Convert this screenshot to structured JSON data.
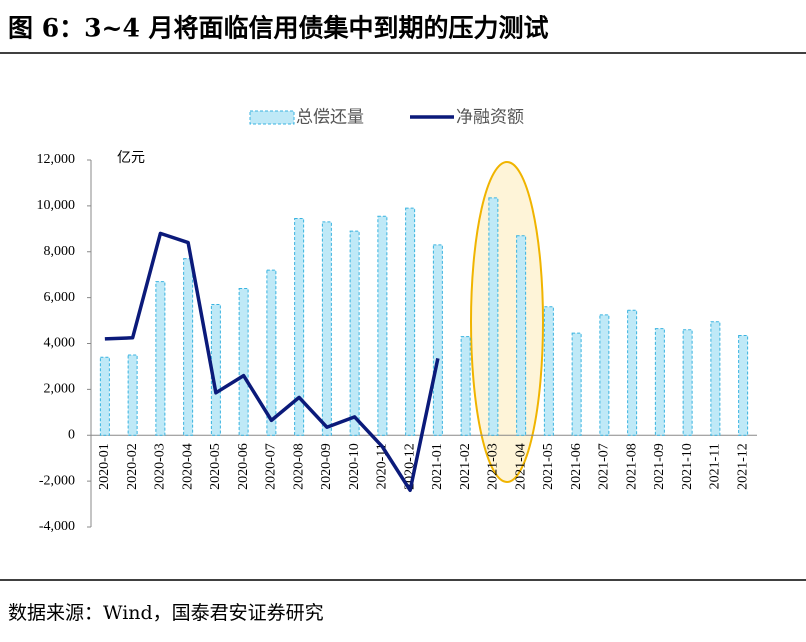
{
  "chart_data": {
    "type": "bar_line",
    "title": "图 6：3~4 月将面临信用债集中到期的压力测试",
    "y_unit": "亿元",
    "source": "数据来源：Wind，国泰君安证券研究",
    "categories": [
      "2020-01",
      "2020-02",
      "2020-03",
      "2020-04",
      "2020-05",
      "2020-06",
      "2020-07",
      "2020-08",
      "2020-09",
      "2020-10",
      "2020-11",
      "2020-12",
      "2021-01",
      "2021-02",
      "2021-03",
      "2021-04",
      "2021-05",
      "2021-06",
      "2021-07",
      "2021-08",
      "2021-09",
      "2021-10",
      "2021-11",
      "2021-12"
    ],
    "series": [
      {
        "name": "总偿还量",
        "kind": "bar",
        "color": "#bfe9f7",
        "values": [
          3400,
          3500,
          6700,
          7700,
          5700,
          6400,
          7200,
          9450,
          9300,
          8900,
          9550,
          9900,
          8300,
          4300,
          10350,
          8700,
          5600,
          4450,
          5250,
          5450,
          4650,
          4600,
          4950,
          4350
        ]
      },
      {
        "name": "净融资额",
        "kind": "line",
        "color": "#0b1a7a",
        "values": [
          4200,
          4250,
          8800,
          8400,
          1850,
          2600,
          650,
          1650,
          350,
          800,
          -500,
          -2400,
          3350,
          null,
          null,
          null,
          null,
          null,
          null,
          null,
          null,
          null,
          null,
          null
        ]
      }
    ],
    "ylim": [
      -4000,
      12000
    ],
    "yticks": [
      {
        "value": -4000,
        "label": "-4,000"
      },
      {
        "value": -2000,
        "label": "-2,000"
      },
      0,
      {
        "value": 2000,
        "label": "2,000"
      },
      {
        "value": 4000,
        "label": "4,000"
      },
      {
        "value": 6000,
        "label": "6,000"
      },
      {
        "value": 8000,
        "label": "8,000"
      },
      {
        "value": 10000,
        "label": "10,000"
      },
      {
        "value": 12000,
        "label": "12,000"
      }
    ],
    "legend": "top"
  }
}
